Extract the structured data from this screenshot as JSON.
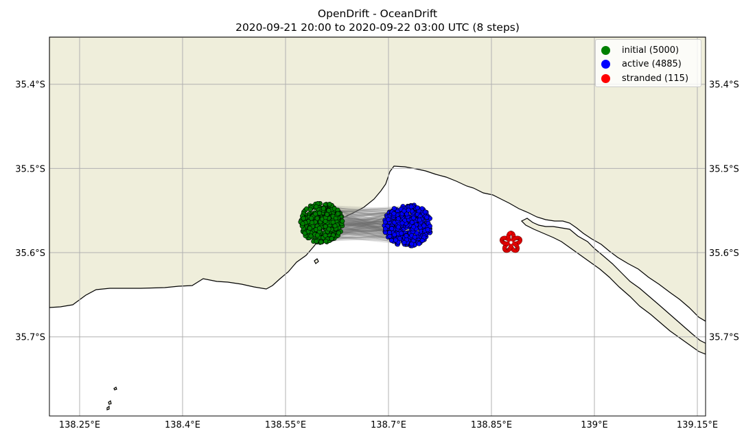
{
  "title": {
    "line1": "OpenDrift - OceanDrift",
    "line2": "2020-09-21 20:00 to 2020-09-22 03:00 UTC (8 steps)"
  },
  "map": {
    "type": "scatter",
    "land_color": "#efeedb",
    "sea_color": "#ffffff",
    "grid": true,
    "lon_ticks": [
      "138.25°E",
      "138.4°E",
      "138.55°E",
      "138.7°E",
      "138.85°E",
      "139°E",
      "139.15°E"
    ],
    "lat_ticks": [
      "35.4°S",
      "35.5°S",
      "35.6°S",
      "35.7°S"
    ],
    "extent": {
      "lon": [
        138.206,
        139.162
      ],
      "lat": [
        -35.794,
        -35.344
      ]
    }
  },
  "legend": {
    "placement": "top-right",
    "items": [
      {
        "key": "initial",
        "label": "initial (5000)",
        "color": "#008000"
      },
      {
        "key": "active",
        "label": "active (4885)",
        "color": "#0000ff"
      },
      {
        "key": "stranded",
        "label": "stranded (115)",
        "color": "#ff0000"
      }
    ]
  },
  "chart_data": {
    "type": "scatter",
    "series": [
      {
        "name": "initial (5000)",
        "color": "#008000",
        "count": 5000,
        "lon_range": [
          138.572,
          138.633
        ],
        "lat_range": [
          -35.588,
          -35.541
        ]
      },
      {
        "name": "active (4885)",
        "color": "#0000ff",
        "count": 4885,
        "lon_range": [
          138.694,
          138.762
        ],
        "lat_range": [
          -35.592,
          -35.543
        ]
      },
      {
        "name": "stranded (115)",
        "color": "#ff0000",
        "count": 115,
        "lon_range": [
          138.872,
          138.885
        ],
        "lat_range": [
          -35.598,
          -35.578
        ]
      }
    ]
  }
}
